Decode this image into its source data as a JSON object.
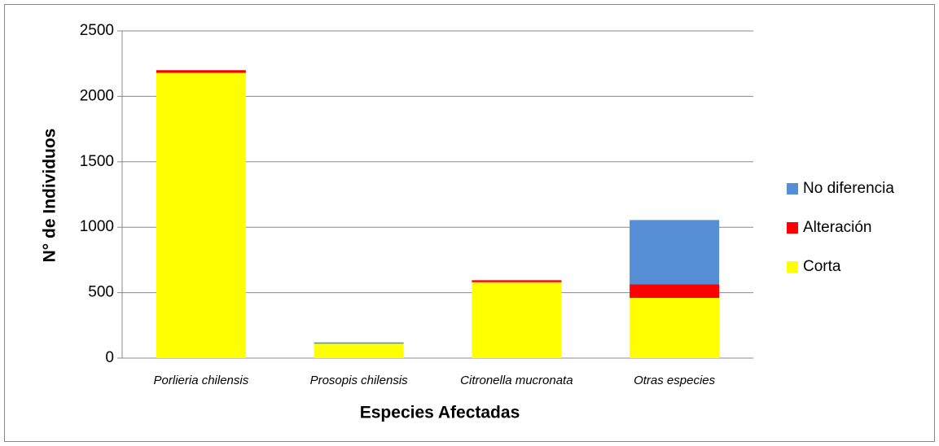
{
  "chart_data": {
    "type": "stacked_bar",
    "categories": [
      "Porlieria chilensis",
      "Prosopis chilensis",
      "Citronella mucronata",
      "Otras especies"
    ],
    "series": [
      {
        "name": "Corta",
        "color": "#ffff00",
        "values": [
          2180,
          110,
          580,
          460
        ]
      },
      {
        "name": "Alteración",
        "color": "#ff0000",
        "values": [
          20,
          0,
          15,
          105
        ]
      },
      {
        "name": "No diferencia",
        "color": "#558ed5",
        "values": [
          0,
          10,
          0,
          490
        ]
      }
    ],
    "xlabel": "Especies Afectadas",
    "ylabel": "N° de Individuos",
    "ylim": [
      0,
      2500
    ],
    "yticks": [
      0,
      500,
      1000,
      1500,
      2000,
      2500
    ],
    "grid": true,
    "legend": "right"
  }
}
